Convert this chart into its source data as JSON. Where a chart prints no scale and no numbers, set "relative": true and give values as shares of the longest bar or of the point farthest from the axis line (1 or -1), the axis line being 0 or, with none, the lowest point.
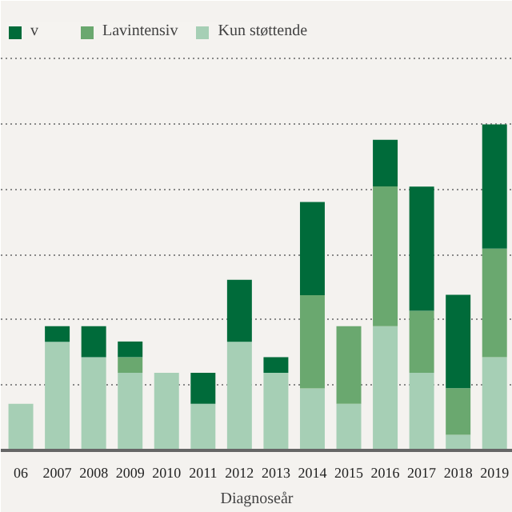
{
  "chart_data": {
    "type": "bar",
    "stacked": true,
    "relative": true,
    "xlabel": "Diagnoseår",
    "legend": "top",
    "grid": "y",
    "categories": [
      "06",
      "2007",
      "2008",
      "2009",
      "2010",
      "2011",
      "2012",
      "2013",
      "2014",
      "2015",
      "2016",
      "2017",
      "2018",
      "2019"
    ],
    "series": [
      {
        "name": "Kun støttende",
        "color": "#a6cfb5",
        "values": [
          0.143,
          0.333,
          0.286,
          0.238,
          0.238,
          0.143,
          0.333,
          0.238,
          0.19,
          0.143,
          0.381,
          0.238,
          0.048,
          0.286
        ]
      },
      {
        "name": "Lavintensiv",
        "color": "#6aa86f",
        "values": [
          0,
          0,
          0,
          0.048,
          0,
          0,
          0,
          0,
          0.286,
          0.238,
          0.429,
          0.19,
          0.143,
          0.333
        ]
      },
      {
        "name": "v",
        "color": "#006b3a",
        "values": [
          0,
          0.048,
          0.095,
          0.048,
          0,
          0.095,
          0.19,
          0.048,
          0.286,
          0,
          0.143,
          0.381,
          0.286,
          0.381
        ]
      }
    ]
  }
}
